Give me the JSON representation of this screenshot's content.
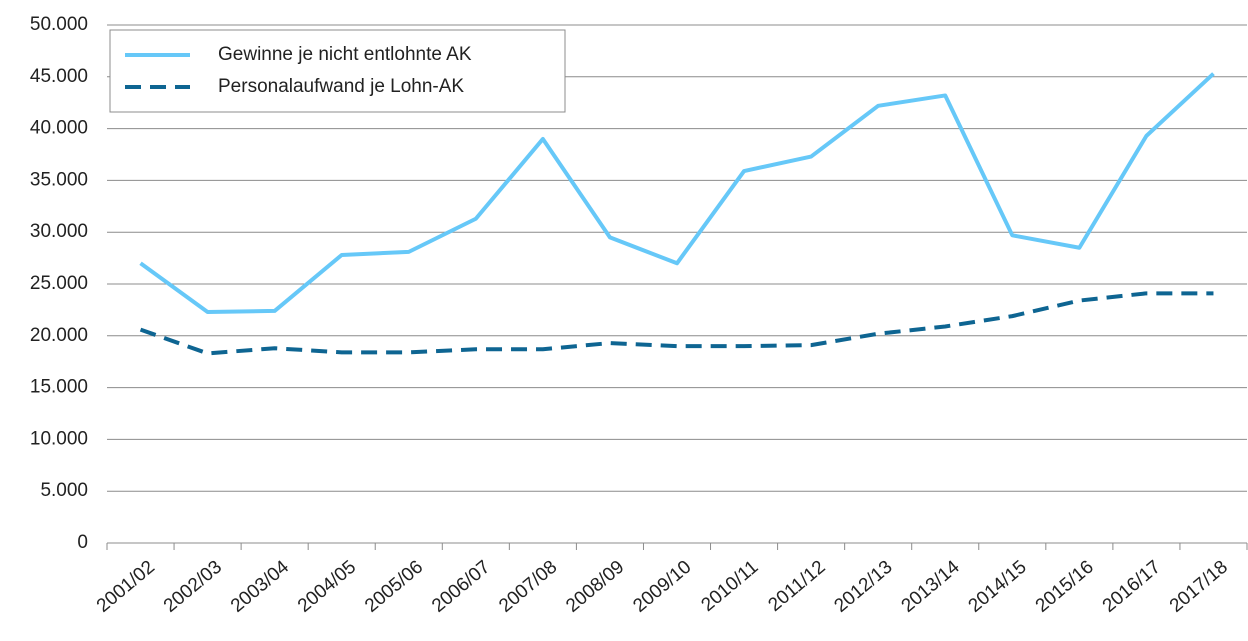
{
  "chart_data": {
    "type": "line",
    "categories": [
      "2001/02",
      "2002/03",
      "2003/04",
      "2004/05",
      "2005/06",
      "2006/07",
      "2007/08",
      "2008/09",
      "2009/10",
      "2010/11",
      "2011/12",
      "2012/13",
      "2013/14",
      "2014/15",
      "2015/16",
      "2016/17",
      "2017/18"
    ],
    "series": [
      {
        "name": "Gewinne je nicht entlohnte AK",
        "color": "#66c8f8",
        "dash": false,
        "values": [
          27000,
          22300,
          22400,
          27800,
          28100,
          31300,
          39000,
          29500,
          27000,
          35900,
          37300,
          42200,
          43200,
          29700,
          28500,
          39300,
          45300
        ]
      },
      {
        "name": "Personalaufwand je Lohn-AK",
        "color": "#0e6592",
        "dash": true,
        "values": [
          20600,
          18300,
          18800,
          18400,
          18400,
          18700,
          18700,
          19300,
          19000,
          19000,
          19100,
          20200,
          20900,
          21900,
          23400,
          24100,
          24100
        ]
      }
    ],
    "ylim": [
      0,
      50000
    ],
    "yticks": [
      0,
      {
        "value": 5000,
        "label": "5.000"
      },
      {
        "value": 10000,
        "label": "10.000"
      },
      {
        "value": 15000,
        "label": "15.000"
      },
      {
        "value": 20000,
        "label": "20.000"
      },
      {
        "value": 25000,
        "label": "25.000"
      },
      {
        "value": 30000,
        "label": "30.000"
      },
      {
        "value": 35000,
        "label": "35.000"
      },
      {
        "value": 40000,
        "label": "40.000"
      },
      {
        "value": 45000,
        "label": "45.000"
      },
      {
        "value": 50000,
        "label": "50.000"
      }
    ],
    "grid": true,
    "legend": "top-left"
  }
}
